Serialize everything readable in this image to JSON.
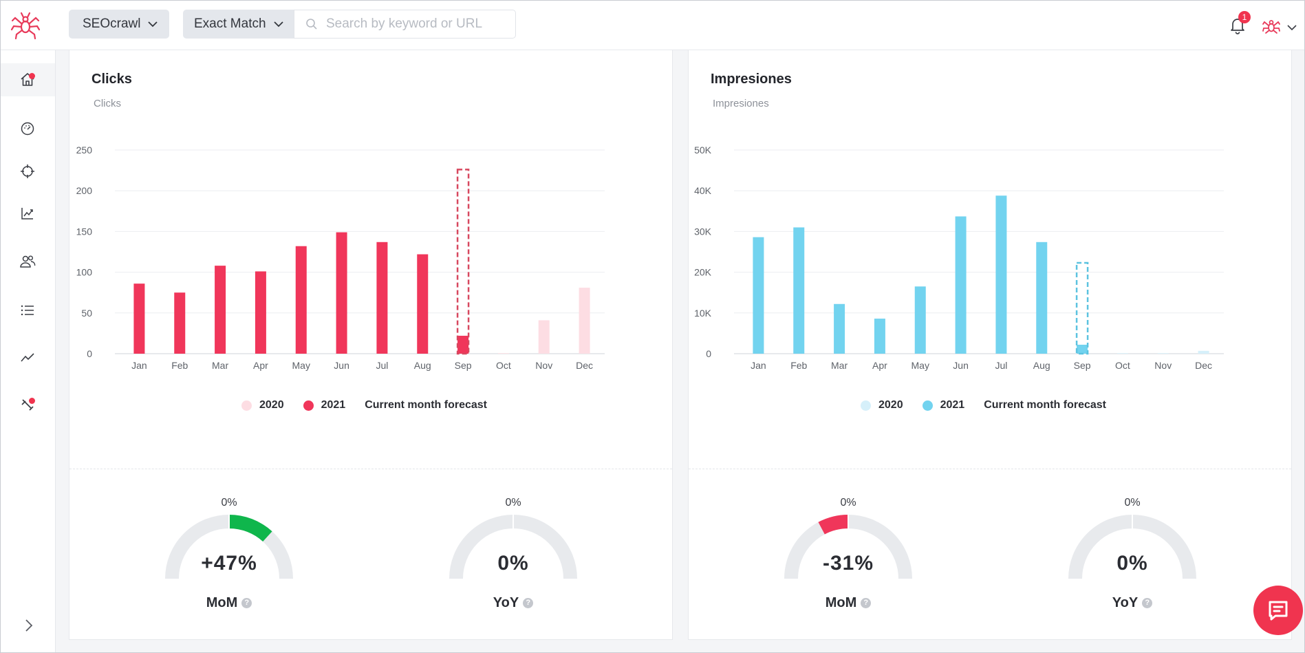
{
  "header": {
    "project_select": "SEOcrawl",
    "match_select": "Exact Match",
    "search_placeholder": "Search by keyword or URL",
    "notification_count": "1"
  },
  "sidebar": {
    "items": [
      "home",
      "dashboard",
      "target",
      "rankings",
      "users",
      "list",
      "trends",
      "tools"
    ],
    "active": "home"
  },
  "charts": {
    "clicks": {
      "title": "Clicks",
      "axis_label": "Clicks",
      "legend_2020": "2020",
      "legend_2021": "2021",
      "legend_forecast": "Current month forecast"
    },
    "impressions": {
      "title": "Impresiones",
      "axis_label": "Impresiones",
      "legend_2020": "2020",
      "legend_2021": "2021",
      "legend_forecast": "Current month forecast"
    }
  },
  "chart_data": [
    {
      "type": "bar",
      "title": "Clicks",
      "ylabel": "Clicks",
      "categories": [
        "Jan",
        "Feb",
        "Mar",
        "Apr",
        "May",
        "Jun",
        "Jul",
        "Aug",
        "Sep",
        "Oct",
        "Nov",
        "Dec"
      ],
      "ylim": [
        0,
        250
      ],
      "yticks": [
        0,
        50,
        100,
        150,
        200,
        250
      ],
      "ytick_labels": [
        "0",
        "50",
        "100",
        "150",
        "200",
        "250"
      ],
      "series": [
        {
          "name": "2020",
          "values": [
            null,
            null,
            null,
            null,
            null,
            null,
            null,
            null,
            null,
            0,
            41,
            81
          ],
          "color": "#fddde3"
        },
        {
          "name": "2021",
          "values": [
            86,
            75,
            108,
            101,
            132,
            149,
            137,
            122,
            22,
            null,
            null,
            null
          ],
          "color": "#f0365a"
        }
      ],
      "forecast": {
        "category": "Sep",
        "value": 226,
        "label": "Current month forecast"
      },
      "colors": {
        "main": "#f0365a",
        "light": "#fddde3",
        "forecast": "#d7485f"
      }
    },
    {
      "type": "bar",
      "title": "Impresiones",
      "ylabel": "Impresiones",
      "categories": [
        "Jan",
        "Feb",
        "Mar",
        "Apr",
        "May",
        "Jun",
        "Jul",
        "Aug",
        "Sep",
        "Oct",
        "Nov",
        "Dec"
      ],
      "ylim": [
        0,
        50000
      ],
      "yticks": [
        0,
        10000,
        20000,
        30000,
        40000,
        50000
      ],
      "ytick_labels": [
        "0",
        "10K",
        "20K",
        "30K",
        "40K",
        "50K"
      ],
      "series": [
        {
          "name": "2020",
          "values": [
            null,
            null,
            null,
            null,
            null,
            null,
            null,
            null,
            null,
            0,
            0,
            700
          ],
          "color": "#d6f0fa"
        },
        {
          "name": "2021",
          "values": [
            28600,
            31000,
            12200,
            8600,
            16500,
            33700,
            38800,
            27400,
            2200,
            null,
            null,
            null
          ],
          "color": "#72d3ef"
        }
      ],
      "forecast": {
        "category": "Sep",
        "value": 22300,
        "label": "Current month forecast"
      },
      "colors": {
        "main": "#72d3ef",
        "light": "#d6f0fa",
        "forecast": "#5cc3e0"
      }
    }
  ],
  "gauges": {
    "clicks_mom": {
      "top": "0%",
      "value": "+47%",
      "label": "MoM",
      "fraction": 0.47,
      "color": "#0fb64c"
    },
    "clicks_yoy": {
      "top": "0%",
      "value": "0%",
      "label": "YoY",
      "fraction": 0,
      "color": "#0fb64c"
    },
    "impr_mom": {
      "top": "0%",
      "value": "-31%",
      "label": "MoM",
      "fraction": -0.31,
      "color": "#f0365a"
    },
    "impr_yoy": {
      "top": "0%",
      "value": "0%",
      "label": "YoY",
      "fraction": 0,
      "color": "#0fb64c"
    }
  },
  "help_glyph": "?",
  "colors": {
    "brand": "#f0344f",
    "track": "#e8eaed"
  }
}
